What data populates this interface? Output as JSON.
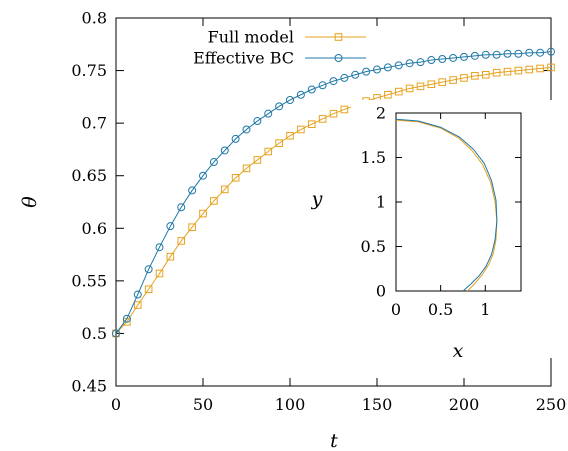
{
  "chart_data": [
    {
      "type": "line",
      "title": "",
      "xlabel": "t",
      "ylabel": "θ",
      "xlim": [
        0,
        250
      ],
      "ylim": [
        0.45,
        0.8
      ],
      "xticks": [
        "0",
        "50",
        "100",
        "150",
        "200",
        "250"
      ],
      "yticks": [
        "0.45",
        "0.5",
        "0.55",
        "0.6",
        "0.65",
        "0.7",
        "0.75",
        "0.8"
      ],
      "grid": false,
      "legend_position": "top-center",
      "x": [
        0,
        6.25,
        12.5,
        18.75,
        25,
        31.25,
        37.5,
        43.75,
        50,
        56.25,
        62.5,
        68.75,
        75,
        81.25,
        87.5,
        93.75,
        100,
        106.25,
        112.5,
        118.75,
        125,
        131.25,
        137.5,
        143.75,
        150,
        156.25,
        162.5,
        168.75,
        175,
        181.25,
        187.5,
        193.75,
        200,
        206.25,
        212.5,
        218.75,
        225,
        231.25,
        237.5,
        243.75,
        250
      ],
      "series": [
        {
          "name": "Full model",
          "color": "#e6a21e",
          "marker": "square",
          "values": [
            0.5,
            0.511,
            0.527,
            0.542,
            0.557,
            0.573,
            0.588,
            0.601,
            0.614,
            0.626,
            0.637,
            0.648,
            0.657,
            0.665,
            0.673,
            0.681,
            0.688,
            0.694,
            0.699,
            0.704,
            0.709,
            0.713,
            0.717,
            0.721,
            0.724,
            0.727,
            0.73,
            0.733,
            0.735,
            0.737,
            0.739,
            0.741,
            0.743,
            0.745,
            0.746,
            0.748,
            0.749,
            0.75,
            0.751,
            0.752,
            0.753
          ]
        },
        {
          "name": "Effective BC",
          "color": "#1e78a8",
          "marker": "circle",
          "values": [
            0.5,
            0.514,
            0.537,
            0.561,
            0.582,
            0.602,
            0.62,
            0.636,
            0.65,
            0.663,
            0.674,
            0.685,
            0.694,
            0.702,
            0.709,
            0.716,
            0.722,
            0.727,
            0.732,
            0.736,
            0.74,
            0.743,
            0.746,
            0.749,
            0.751,
            0.753,
            0.755,
            0.757,
            0.758,
            0.76,
            0.761,
            0.762,
            0.763,
            0.764,
            0.765,
            0.765,
            0.766,
            0.766,
            0.767,
            0.767,
            0.768
          ]
        }
      ]
    },
    {
      "type": "line",
      "title": "",
      "inset": true,
      "xlabel": "x",
      "ylabel": "y",
      "xlim": [
        0,
        1.4
      ],
      "ylim": [
        0,
        2
      ],
      "xticks": [
        "0",
        "0.5",
        "1"
      ],
      "yticks": [
        "0",
        "0.5",
        "1",
        "1.5",
        "2"
      ],
      "series": [
        {
          "name": "Full model",
          "color": "#e6a21e",
          "x": [
            0.0,
            0.25,
            0.5,
            0.7,
            0.85,
            0.97,
            1.06,
            1.11,
            1.13,
            1.12,
            1.09,
            1.04,
            0.97,
            0.89,
            0.8
          ],
          "y": [
            1.92,
            1.9,
            1.83,
            1.72,
            1.58,
            1.42,
            1.22,
            1.0,
            0.78,
            0.58,
            0.42,
            0.3,
            0.19,
            0.09,
            0.0
          ]
        },
        {
          "name": "Effective BC",
          "color": "#1e78a8",
          "x": [
            0.0,
            0.25,
            0.5,
            0.71,
            0.87,
            0.99,
            1.07,
            1.12,
            1.13,
            1.11,
            1.07,
            1.01,
            0.93,
            0.84,
            0.75
          ],
          "y": [
            1.93,
            1.91,
            1.84,
            1.73,
            1.59,
            1.43,
            1.24,
            1.02,
            0.79,
            0.58,
            0.41,
            0.28,
            0.17,
            0.08,
            0.0
          ]
        }
      ]
    }
  ]
}
